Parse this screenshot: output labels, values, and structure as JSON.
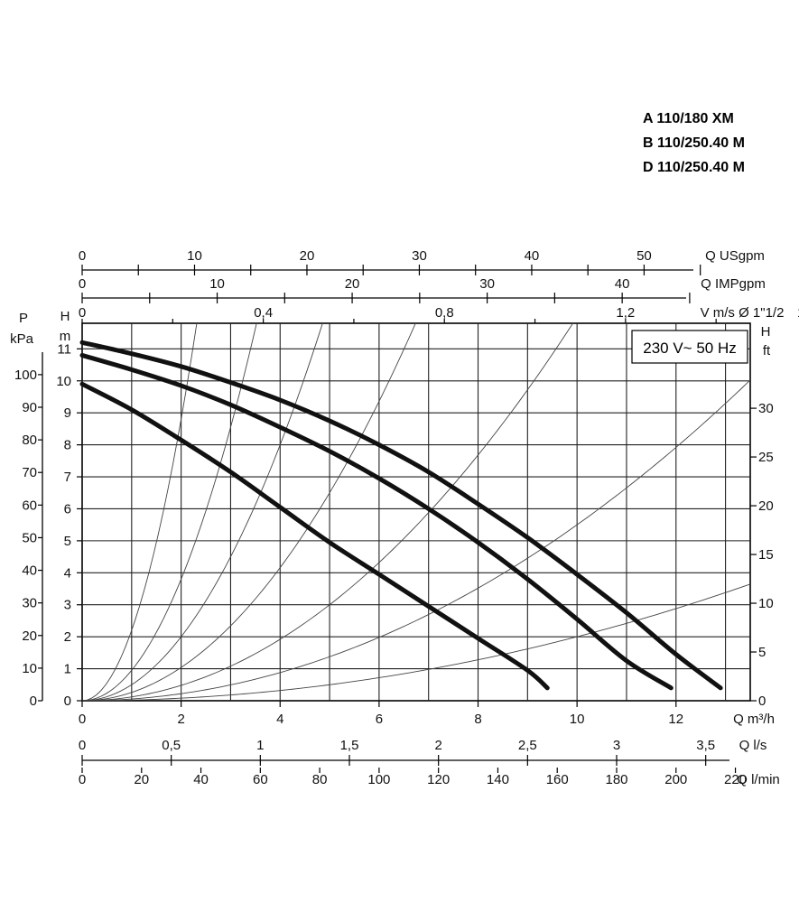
{
  "legend": [
    "A 110/180 XM",
    "B 110/250.40 M",
    "D 110/250.40 M"
  ],
  "chart_data": {
    "type": "line",
    "note": "230 V~ 50 Hz",
    "x_axis": {
      "label": "Q m³/h",
      "range": [
        0,
        13.5
      ],
      "ticks": [
        0,
        2,
        4,
        6,
        8,
        10,
        12
      ]
    },
    "y_axis_left": {
      "unit": "m",
      "label": "H",
      "range": [
        0,
        11.8
      ],
      "ticks": [
        0,
        1,
        2,
        3,
        4,
        5,
        6,
        7,
        8,
        9,
        10,
        11
      ]
    },
    "y_axis_pressure": {
      "unit": "kPa",
      "label": "P",
      "ticks": [
        0,
        10,
        20,
        30,
        40,
        50,
        60,
        70,
        80,
        90,
        100
      ]
    },
    "y_axis_right": {
      "unit": "ft",
      "label": "H",
      "ticks": [
        0,
        5,
        10,
        15,
        20,
        25,
        30
      ]
    },
    "top_axes": [
      {
        "label": "Q USgpm",
        "ticks": [
          0,
          10,
          20,
          30,
          40,
          50
        ]
      },
      {
        "label": "Q IMPgpm",
        "ticks": [
          0,
          10,
          20,
          30,
          40
        ]
      },
      {
        "label": "V m/s Ø 1\"1/2",
        "ticks": [
          "0",
          "0,4",
          "0,8",
          "1,2",
          "1,6"
        ]
      }
    ],
    "bottom_axes": [
      {
        "label": "Q l/s",
        "ticks": [
          "0",
          "0,5",
          "1",
          "1,5",
          "2",
          "2,5",
          "3",
          "3,5"
        ]
      },
      {
        "label": "Q l/min",
        "ticks": [
          0,
          20,
          40,
          60,
          80,
          100,
          120,
          140,
          160,
          180,
          200,
          220
        ]
      }
    ],
    "series": [
      {
        "x": [
          0,
          1,
          2,
          3,
          4,
          5,
          6,
          7,
          8,
          9,
          10,
          11,
          12,
          12.9
        ],
        "y": [
          11.2,
          10.85,
          10.45,
          9.95,
          9.4,
          8.75,
          8.0,
          7.15,
          6.15,
          5.1,
          3.95,
          2.75,
          1.45,
          0.4
        ]
      },
      {
        "x": [
          0,
          1,
          2,
          3,
          4,
          5,
          6,
          7,
          8,
          9,
          10,
          11,
          11.9
        ],
        "y": [
          10.8,
          10.35,
          9.85,
          9.25,
          8.55,
          7.8,
          6.95,
          6.0,
          4.95,
          3.8,
          2.55,
          1.25,
          0.4
        ]
      },
      {
        "x": [
          0,
          1,
          2,
          3,
          4,
          5,
          6,
          7,
          8,
          9,
          9.4
        ],
        "y": [
          9.9,
          9.1,
          8.15,
          7.15,
          6.05,
          4.95,
          3.95,
          2.95,
          1.95,
          0.95,
          0.4
        ]
      }
    ],
    "system_curves_k": [
      2.2,
      0.95,
      0.5,
      0.26,
      0.12,
      0.055,
      0.02
    ],
    "grid": true
  }
}
